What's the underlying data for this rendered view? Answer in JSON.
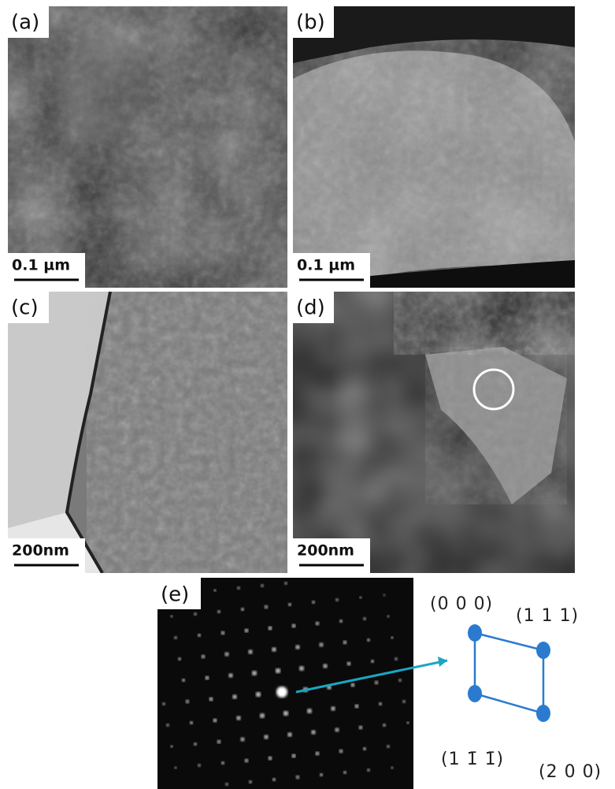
{
  "panels": [
    {
      "label": "(a)",
      "scale_bar": "0.1 µm"
    },
    {
      "label": "(b)",
      "scale_bar": "0.1 µm"
    },
    {
      "label": "(c)",
      "scale_bar": "200nm"
    },
    {
      "label": "(d)",
      "scale_bar": "200nm"
    }
  ],
  "diffraction": {
    "label": "(e)",
    "indices": [
      "(0 0 0)",
      "(1 1 1)",
      "(1 1̄ 1̄)",
      "(2 0 0)"
    ]
  }
}
